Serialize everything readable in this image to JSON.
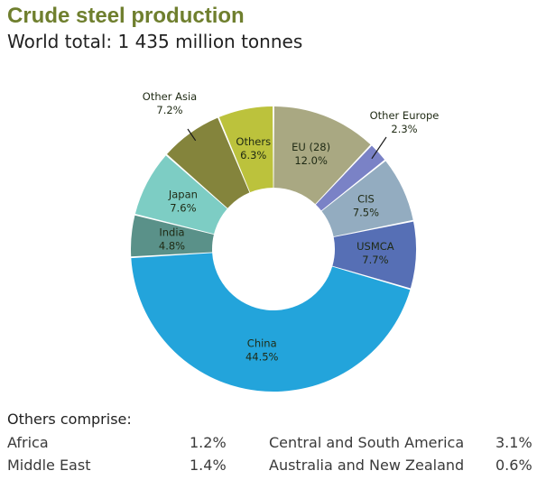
{
  "chart_data": {
    "type": "pie",
    "style": "donut",
    "title": "Crude steel production",
    "subtitle": "World total: 1 435 million tonnes",
    "slices": [
      {
        "name": "EU (28)",
        "label_value": "12.0%",
        "value": 12.0,
        "color": "#a9a882"
      },
      {
        "name": "Other Europe",
        "label_value": "2.3%",
        "value": 2.3,
        "color": "#7a82c6"
      },
      {
        "name": "CIS",
        "label_value": "7.5%",
        "value": 7.5,
        "color": "#93acc0"
      },
      {
        "name": "USMCA",
        "label_value": "7.7%",
        "value": 7.7,
        "color": "#566fb5"
      },
      {
        "name": "China",
        "label_value": "44.5%",
        "value": 44.5,
        "color": "#23a4db"
      },
      {
        "name": "India",
        "label_value": "4.8%",
        "value": 4.8,
        "color": "#5a9189"
      },
      {
        "name": "Japan",
        "label_value": "7.6%",
        "value": 7.6,
        "color": "#7dcdc4"
      },
      {
        "name": "Other Asia",
        "label_value": "7.2%",
        "value": 7.2,
        "color": "#84843c"
      },
      {
        "name": "Others",
        "label_value": "6.3%",
        "value": 6.3,
        "color": "#bcc23c"
      }
    ]
  },
  "others": {
    "title": "Others comprise:",
    "items": [
      {
        "name": "Africa",
        "value": "1.2%"
      },
      {
        "name": "Middle East",
        "value": "1.4%"
      },
      {
        "name": "Central and South America",
        "value": "3.1%"
      },
      {
        "name": "Australia and New Zealand",
        "value": "0.6%"
      }
    ]
  }
}
